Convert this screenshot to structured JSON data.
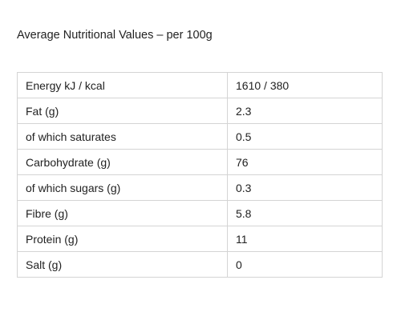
{
  "heading": "Average Nutritional Values – per 100g",
  "table": {
    "rows": [
      {
        "label": "Energy kJ / kcal",
        "value": "1610 / 380"
      },
      {
        "label": "Fat (g)",
        "value": "2.3"
      },
      {
        "label": "of which saturates",
        "value": "0.5"
      },
      {
        "label": "Carbohydrate (g)",
        "value": "76"
      },
      {
        "label": "of which sugars (g)",
        "value": "0.3"
      },
      {
        "label": "Fibre (g)",
        "value": "5.8"
      },
      {
        "label": "Protein (g)",
        "value": "11"
      },
      {
        "label": "Salt (g)",
        "value": "0"
      }
    ]
  }
}
